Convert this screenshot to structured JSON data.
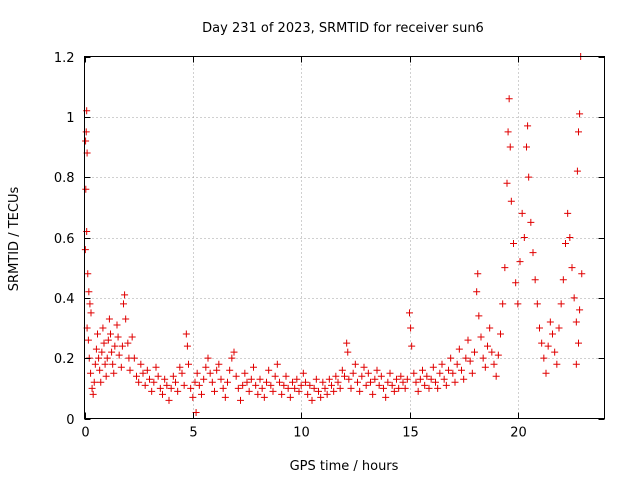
{
  "chart_data": {
    "type": "scatter",
    "title": "Day 231 of 2023, SRMTID for receiver sun6",
    "xlabel": "GPS time / hours",
    "ylabel": "SRMTID / TECUs",
    "xlim": [
      0,
      24
    ],
    "ylim": [
      0,
      1.2
    ],
    "x_ticks": [
      0,
      5,
      10,
      15,
      20
    ],
    "x_tick_labels": [
      "0",
      "5",
      "10",
      "15",
      "20"
    ],
    "y_ticks": [
      0,
      0.2,
      0.4,
      0.6,
      0.8,
      1.0,
      1.2
    ],
    "y_tick_labels": [
      "0",
      "0.2",
      "0.4",
      "0.6",
      "0.8",
      "1",
      "1.2"
    ],
    "grid": true,
    "marker": "+",
    "color": "#e00000",
    "series": [
      {
        "name": "sun6",
        "points": [
          [
            0.05,
            0.92
          ],
          [
            0.08,
            0.95
          ],
          [
            0.1,
            1.02
          ],
          [
            0.12,
            0.88
          ],
          [
            0.06,
            0.76
          ],
          [
            0.1,
            0.62
          ],
          [
            0.04,
            0.56
          ],
          [
            0.15,
            0.48
          ],
          [
            0.2,
            0.42
          ],
          [
            0.25,
            0.38
          ],
          [
            0.3,
            0.35
          ],
          [
            0.12,
            0.3
          ],
          [
            0.18,
            0.26
          ],
          [
            0.22,
            0.2
          ],
          [
            0.28,
            0.15
          ],
          [
            0.35,
            0.1
          ],
          [
            0.4,
            0.08
          ],
          [
            0.45,
            0.12
          ],
          [
            0.5,
            0.18
          ],
          [
            0.55,
            0.23
          ],
          [
            0.6,
            0.28
          ],
          [
            0.65,
            0.2
          ],
          [
            0.7,
            0.16
          ],
          [
            0.75,
            0.12
          ],
          [
            0.8,
            0.22
          ],
          [
            0.85,
            0.3
          ],
          [
            0.9,
            0.25
          ],
          [
            0.95,
            0.18
          ],
          [
            1.0,
            0.14
          ],
          [
            1.05,
            0.2
          ],
          [
            1.1,
            0.26
          ],
          [
            1.15,
            0.33
          ],
          [
            1.2,
            0.28
          ],
          [
            1.25,
            0.22
          ],
          [
            1.3,
            0.18
          ],
          [
            1.35,
            0.15
          ],
          [
            1.4,
            0.24
          ],
          [
            1.5,
            0.31
          ],
          [
            1.55,
            0.27
          ],
          [
            1.6,
            0.21
          ],
          [
            1.7,
            0.17
          ],
          [
            1.75,
            0.24
          ],
          [
            1.8,
            0.38
          ],
          [
            1.85,
            0.41
          ],
          [
            1.9,
            0.33
          ],
          [
            2.0,
            0.25
          ],
          [
            2.05,
            0.2
          ],
          [
            2.1,
            0.16
          ],
          [
            2.2,
            0.27
          ],
          [
            2.3,
            0.2
          ],
          [
            2.4,
            0.14
          ],
          [
            2.5,
            0.12
          ],
          [
            2.6,
            0.18
          ],
          [
            2.7,
            0.15
          ],
          [
            2.8,
            0.11
          ],
          [
            2.9,
            0.16
          ],
          [
            3.0,
            0.13
          ],
          [
            3.1,
            0.09
          ],
          [
            3.2,
            0.12
          ],
          [
            3.3,
            0.17
          ],
          [
            3.4,
            0.14
          ],
          [
            3.5,
            0.1
          ],
          [
            3.6,
            0.08
          ],
          [
            3.7,
            0.13
          ],
          [
            3.8,
            0.11
          ],
          [
            3.9,
            0.06
          ],
          [
            4.0,
            0.1
          ],
          [
            4.1,
            0.14
          ],
          [
            4.2,
            0.12
          ],
          [
            4.3,
            0.09
          ],
          [
            4.4,
            0.17
          ],
          [
            4.5,
            0.15
          ],
          [
            4.6,
            0.11
          ],
          [
            4.7,
            0.28
          ],
          [
            4.75,
            0.24
          ],
          [
            4.8,
            0.18
          ],
          [
            4.9,
            0.1
          ],
          [
            5.0,
            0.07
          ],
          [
            5.1,
            0.12
          ],
          [
            5.15,
            0.02
          ],
          [
            5.2,
            0.15
          ],
          [
            5.3,
            0.11
          ],
          [
            5.4,
            0.08
          ],
          [
            5.5,
            0.13
          ],
          [
            5.6,
            0.17
          ],
          [
            5.7,
            0.2
          ],
          [
            5.8,
            0.15
          ],
          [
            5.9,
            0.12
          ],
          [
            6.0,
            0.09
          ],
          [
            6.1,
            0.16
          ],
          [
            6.2,
            0.18
          ],
          [
            6.3,
            0.13
          ],
          [
            6.4,
            0.1
          ],
          [
            6.5,
            0.07
          ],
          [
            6.6,
            0.12
          ],
          [
            6.7,
            0.16
          ],
          [
            6.8,
            0.2
          ],
          [
            6.9,
            0.22
          ],
          [
            7.0,
            0.14
          ],
          [
            7.1,
            0.1
          ],
          [
            7.2,
            0.06
          ],
          [
            7.3,
            0.11
          ],
          [
            7.4,
            0.15
          ],
          [
            7.5,
            0.12
          ],
          [
            7.6,
            0.09
          ],
          [
            7.7,
            0.13
          ],
          [
            7.8,
            0.17
          ],
          [
            7.9,
            0.11
          ],
          [
            8.0,
            0.08
          ],
          [
            8.1,
            0.13
          ],
          [
            8.2,
            0.1
          ],
          [
            8.3,
            0.07
          ],
          [
            8.4,
            0.12
          ],
          [
            8.5,
            0.16
          ],
          [
            8.6,
            0.11
          ],
          [
            8.7,
            0.09
          ],
          [
            8.8,
            0.14
          ],
          [
            8.9,
            0.18
          ],
          [
            9.0,
            0.12
          ],
          [
            9.1,
            0.08
          ],
          [
            9.2,
            0.11
          ],
          [
            9.3,
            0.14
          ],
          [
            9.4,
            0.1
          ],
          [
            9.5,
            0.07
          ],
          [
            9.6,
            0.12
          ],
          [
            9.7,
            0.1
          ],
          [
            9.8,
            0.13
          ],
          [
            9.9,
            0.09
          ],
          [
            10.0,
            0.11
          ],
          [
            10.1,
            0.15
          ],
          [
            10.2,
            0.12
          ],
          [
            10.3,
            0.08
          ],
          [
            10.4,
            0.11
          ],
          [
            10.5,
            0.06
          ],
          [
            10.6,
            0.1
          ],
          [
            10.7,
            0.13
          ],
          [
            10.8,
            0.09
          ],
          [
            10.9,
            0.07
          ],
          [
            11.0,
            0.12
          ],
          [
            11.1,
            0.1
          ],
          [
            11.2,
            0.08
          ],
          [
            11.3,
            0.13
          ],
          [
            11.4,
            0.11
          ],
          [
            11.5,
            0.09
          ],
          [
            11.6,
            0.14
          ],
          [
            11.7,
            0.12
          ],
          [
            11.8,
            0.1
          ],
          [
            11.9,
            0.16
          ],
          [
            12.0,
            0.14
          ],
          [
            12.1,
            0.25
          ],
          [
            12.15,
            0.22
          ],
          [
            12.2,
            0.13
          ],
          [
            12.3,
            0.1
          ],
          [
            12.4,
            0.15
          ],
          [
            12.5,
            0.18
          ],
          [
            12.6,
            0.12
          ],
          [
            12.7,
            0.09
          ],
          [
            12.8,
            0.14
          ],
          [
            12.9,
            0.17
          ],
          [
            13.0,
            0.11
          ],
          [
            13.1,
            0.15
          ],
          [
            13.2,
            0.12
          ],
          [
            13.3,
            0.08
          ],
          [
            13.4,
            0.13
          ],
          [
            13.5,
            0.16
          ],
          [
            13.6,
            0.11
          ],
          [
            13.7,
            0.14
          ],
          [
            13.8,
            0.1
          ],
          [
            13.9,
            0.07
          ],
          [
            14.0,
            0.12
          ],
          [
            14.1,
            0.15
          ],
          [
            14.2,
            0.11
          ],
          [
            14.3,
            0.09
          ],
          [
            14.4,
            0.13
          ],
          [
            14.5,
            0.1
          ],
          [
            14.6,
            0.14
          ],
          [
            14.7,
            0.12
          ],
          [
            14.8,
            0.1
          ],
          [
            14.9,
            0.13
          ],
          [
            15.0,
            0.35
          ],
          [
            15.05,
            0.3
          ],
          [
            15.1,
            0.24
          ],
          [
            15.2,
            0.15
          ],
          [
            15.3,
            0.12
          ],
          [
            15.4,
            0.09
          ],
          [
            15.5,
            0.13
          ],
          [
            15.6,
            0.16
          ],
          [
            15.7,
            0.11
          ],
          [
            15.8,
            0.14
          ],
          [
            15.9,
            0.1
          ],
          [
            16.0,
            0.13
          ],
          [
            16.1,
            0.17
          ],
          [
            16.2,
            0.12
          ],
          [
            16.3,
            0.1
          ],
          [
            16.4,
            0.15
          ],
          [
            16.5,
            0.18
          ],
          [
            16.6,
            0.13
          ],
          [
            16.7,
            0.11
          ],
          [
            16.8,
            0.16
          ],
          [
            16.9,
            0.2
          ],
          [
            17.0,
            0.15
          ],
          [
            17.1,
            0.12
          ],
          [
            17.2,
            0.18
          ],
          [
            17.3,
            0.23
          ],
          [
            17.4,
            0.16
          ],
          [
            17.5,
            0.13
          ],
          [
            17.6,
            0.2
          ],
          [
            17.7,
            0.26
          ],
          [
            17.8,
            0.19
          ],
          [
            17.9,
            0.15
          ],
          [
            18.0,
            0.22
          ],
          [
            18.1,
            0.42
          ],
          [
            18.15,
            0.48
          ],
          [
            18.2,
            0.34
          ],
          [
            18.3,
            0.27
          ],
          [
            18.4,
            0.2
          ],
          [
            18.5,
            0.17
          ],
          [
            18.6,
            0.24
          ],
          [
            18.7,
            0.3
          ],
          [
            18.8,
            0.22
          ],
          [
            18.9,
            0.18
          ],
          [
            19.0,
            0.14
          ],
          [
            19.1,
            0.21
          ],
          [
            19.2,
            0.28
          ],
          [
            19.3,
            0.38
          ],
          [
            19.4,
            0.5
          ],
          [
            19.5,
            0.78
          ],
          [
            19.55,
            0.95
          ],
          [
            19.6,
            1.06
          ],
          [
            19.65,
            0.9
          ],
          [
            19.7,
            0.72
          ],
          [
            19.8,
            0.58
          ],
          [
            19.9,
            0.45
          ],
          [
            20.0,
            0.38
          ],
          [
            20.1,
            0.52
          ],
          [
            20.2,
            0.68
          ],
          [
            20.3,
            0.6
          ],
          [
            20.4,
            0.9
          ],
          [
            20.45,
            0.97
          ],
          [
            20.5,
            0.8
          ],
          [
            20.6,
            0.65
          ],
          [
            20.7,
            0.55
          ],
          [
            20.8,
            0.46
          ],
          [
            20.9,
            0.38
          ],
          [
            21.0,
            0.3
          ],
          [
            21.1,
            0.25
          ],
          [
            21.2,
            0.2
          ],
          [
            21.3,
            0.15
          ],
          [
            21.4,
            0.24
          ],
          [
            21.5,
            0.32
          ],
          [
            21.6,
            0.28
          ],
          [
            21.7,
            0.22
          ],
          [
            21.8,
            0.18
          ],
          [
            21.9,
            0.3
          ],
          [
            22.0,
            0.38
          ],
          [
            22.1,
            0.46
          ],
          [
            22.2,
            0.58
          ],
          [
            22.3,
            0.68
          ],
          [
            22.4,
            0.6
          ],
          [
            22.5,
            0.5
          ],
          [
            22.6,
            0.4
          ],
          [
            22.7,
            0.32
          ],
          [
            22.75,
            0.82
          ],
          [
            22.8,
            0.95
          ],
          [
            22.85,
            1.01
          ],
          [
            22.9,
            1.2
          ],
          [
            22.95,
            0.48
          ],
          [
            22.85,
            0.36
          ],
          [
            22.8,
            0.25
          ],
          [
            22.7,
            0.18
          ]
        ]
      }
    ]
  }
}
